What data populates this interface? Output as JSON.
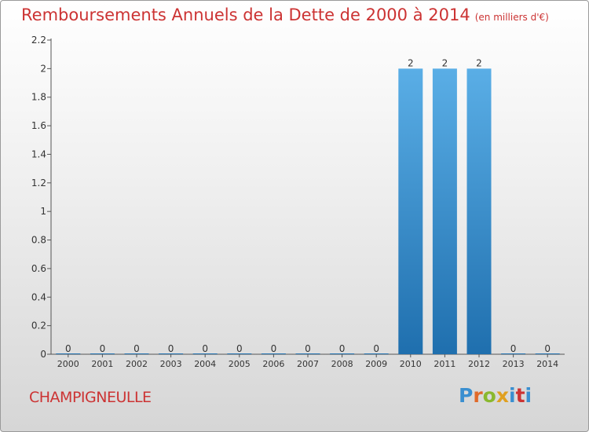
{
  "header": {
    "title": "Remboursements Annuels de la Dette de 2000 à 2014",
    "unit": "(en milliers d'€)"
  },
  "footer": {
    "commune": "CHAMPIGNEULLE",
    "logo": "Proxiti"
  },
  "colors": {
    "title": "#cc3333",
    "bar_top": "#5aaee6",
    "bar_bottom": "#1f6fae",
    "logo_letters": [
      "#3a8fd0",
      "#e06a2a",
      "#8ab82e",
      "#e0a020",
      "#3a8fd0",
      "#cc3333",
      "#3a8fd0"
    ]
  },
  "chart_data": {
    "type": "bar",
    "title": "Remboursements Annuels de la Dette de 2000 à 2014",
    "subtitle": "(en milliers d'€)",
    "categories": [
      "2000",
      "2001",
      "2002",
      "2003",
      "2004",
      "2005",
      "2006",
      "2007",
      "2008",
      "2009",
      "2010",
      "2011",
      "2012",
      "2013",
      "2014"
    ],
    "values": [
      0,
      0,
      0,
      0,
      0,
      0,
      0,
      0,
      0,
      0,
      2,
      2,
      2,
      0,
      0
    ],
    "ylim": [
      0,
      2.2
    ],
    "yticks": [
      0,
      0.2,
      0.4,
      0.6,
      0.8,
      1,
      1.2,
      1.4,
      1.6,
      1.8,
      2,
      2.2
    ],
    "ytick_labels": [
      "0",
      "0.2",
      "0.4",
      "0.6",
      "0.8",
      "1",
      "1.2",
      "1.4",
      "1.6",
      "1.8",
      "2",
      "2.2"
    ],
    "data_labels": [
      "0",
      "0",
      "0",
      "0",
      "0",
      "0",
      "0",
      "0",
      "0",
      "0",
      "2",
      "2",
      "2",
      "0",
      "0"
    ],
    "xlabel": "",
    "ylabel": "",
    "grid": false,
    "legend": "none"
  }
}
